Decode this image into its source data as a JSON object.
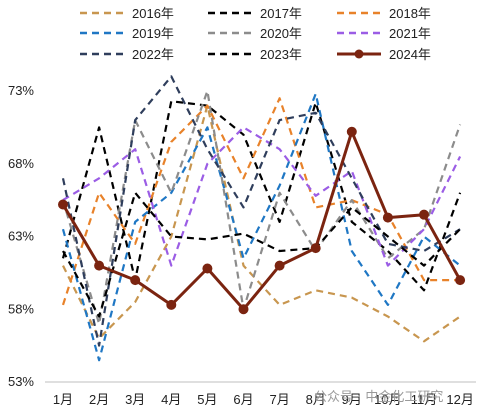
{
  "chart_data": {
    "type": "line",
    "title": "",
    "xlabel": "",
    "ylabel": "",
    "categories": [
      "1月",
      "2月",
      "3月",
      "4月",
      "5月",
      "6月",
      "7月",
      "8月",
      "9月",
      "10月",
      "11月",
      "12月"
    ],
    "ylim": [
      53,
      73
    ],
    "yticks": [
      "53%",
      "58%",
      "63%",
      "68%",
      "73%"
    ],
    "ytick_values": [
      53,
      58,
      63,
      68,
      73
    ],
    "grid": false,
    "legend_position": "top",
    "series": [
      {
        "name": "2016年",
        "color": "#c8964f",
        "style": "dashed",
        "marker": false,
        "values": [
          61.0,
          56.0,
          58.5,
          63.0,
          72.0,
          61.0,
          58.3,
          59.3,
          58.8,
          57.5,
          55.8,
          57.5
        ]
      },
      {
        "name": "2017年",
        "color": "#000000",
        "style": "dashed",
        "marker": false,
        "values": [
          61.5,
          70.5,
          60.0,
          72.3,
          72.0,
          70.0,
          64.0,
          72.2,
          64.0,
          62.0,
          59.3,
          66.0
        ]
      },
      {
        "name": "2018年",
        "color": "#e8822a",
        "style": "dashed",
        "marker": false,
        "values": [
          58.3,
          66.0,
          62.5,
          69.5,
          72.0,
          67.0,
          72.5,
          65.0,
          65.5,
          64.5,
          60.0,
          60.0
        ]
      },
      {
        "name": "2019年",
        "color": "#1f77c4",
        "style": "dashed",
        "marker": false,
        "values": [
          63.5,
          54.5,
          64.0,
          66.0,
          70.5,
          61.5,
          66.5,
          72.8,
          62.0,
          58.3,
          63.0,
          61.0
        ]
      },
      {
        "name": "2020年",
        "color": "#8c8c8c",
        "style": "dashed",
        "marker": false,
        "values": [
          65.5,
          57.0,
          71.0,
          66.0,
          73.0,
          58.0,
          66.0,
          62.0,
          65.5,
          61.5,
          63.5,
          70.7
        ]
      },
      {
        "name": "2021年",
        "color": "#9b5de5",
        "style": "dashed",
        "marker": false,
        "values": [
          65.5,
          67.0,
          69.0,
          61.0,
          68.0,
          70.5,
          69.0,
          65.8,
          67.5,
          61.0,
          63.5,
          68.5
        ]
      },
      {
        "name": "2022年",
        "color": "#2f3e5c",
        "style": "dashed",
        "marker": false,
        "values": [
          67.0,
          55.5,
          71.0,
          74.0,
          69.0,
          65.0,
          71.0,
          71.5,
          67.0,
          62.5,
          62.0,
          63.5
        ]
      },
      {
        "name": "2023年",
        "color": "#000000",
        "style": "dashed",
        "marker": false,
        "values": [
          62.0,
          57.5,
          66.0,
          63.0,
          62.8,
          63.2,
          62.0,
          62.2,
          65.0,
          63.0,
          61.0,
          63.5
        ]
      },
      {
        "name": "2024年",
        "color": "#7b2410",
        "style": "solid",
        "marker": true,
        "values": [
          65.2,
          61.0,
          60.0,
          58.3,
          60.8,
          58.0,
          61.0,
          62.2,
          70.2,
          64.3,
          64.5,
          60.0
        ]
      }
    ]
  },
  "watermark": "公众号 · 中金化工研究"
}
